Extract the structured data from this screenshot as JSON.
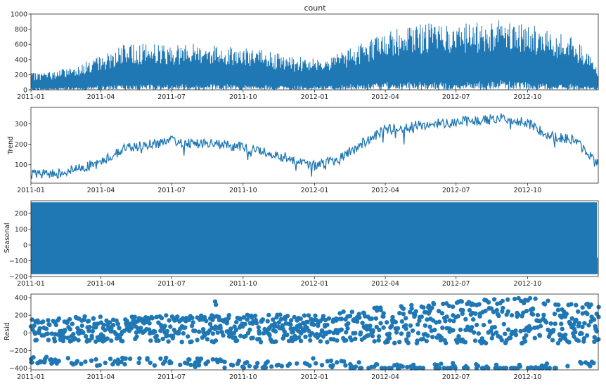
{
  "colors": {
    "series": "#1f77b4",
    "axis": "#262626"
  },
  "chart_data": [
    {
      "type": "line",
      "title": "count",
      "ylabel": "",
      "x_range": [
        "2011-01-01",
        "2012-12-31"
      ],
      "ylim": [
        0,
        1000
      ],
      "yticks": [
        0,
        200,
        400,
        600,
        800,
        1000
      ],
      "xticks": [
        "2011-01",
        "2011-04",
        "2011-07",
        "2011-10",
        "2012-01",
        "2012-04",
        "2012-07",
        "2012-10"
      ],
      "grid": false,
      "envelope": {
        "x": [
          "2011-01-01",
          "2011-02-01",
          "2011-03-01",
          "2011-04-01",
          "2011-05-01",
          "2011-06-01",
          "2011-07-01",
          "2011-08-01",
          "2011-09-01",
          "2011-10-01",
          "2011-11-01",
          "2011-12-01",
          "2012-01-01",
          "2012-02-01",
          "2012-03-01",
          "2012-04-01",
          "2012-05-01",
          "2012-06-01",
          "2012-07-01",
          "2012-08-01",
          "2012-09-01",
          "2012-10-01",
          "2012-11-01",
          "2012-12-01",
          "2012-12-31"
        ],
        "max": [
          220,
          250,
          330,
          450,
          600,
          620,
          600,
          620,
          600,
          560,
          520,
          430,
          450,
          480,
          620,
          780,
          850,
          880,
          870,
          890,
          960,
          880,
          760,
          700,
          300
        ],
        "min": [
          0,
          0,
          0,
          0,
          0,
          0,
          0,
          0,
          0,
          0,
          0,
          0,
          0,
          0,
          0,
          0,
          0,
          0,
          0,
          0,
          0,
          0,
          0,
          0,
          0
        ]
      }
    },
    {
      "type": "line",
      "title": "",
      "ylabel": "Trend",
      "x_range": [
        "2011-01-01",
        "2012-12-31"
      ],
      "ylim": [
        10,
        380
      ],
      "yticks": [
        100,
        200,
        300
      ],
      "xticks": [
        "2011-01",
        "2011-04",
        "2011-07",
        "2011-10",
        "2012-01",
        "2012-04",
        "2012-07",
        "2012-10"
      ],
      "grid": false,
      "x": [
        "2011-01-01",
        "2011-02-01",
        "2011-03-01",
        "2011-04-01",
        "2011-05-01",
        "2011-06-01",
        "2011-07-01",
        "2011-08-01",
        "2011-09-01",
        "2011-10-01",
        "2011-11-01",
        "2011-12-01",
        "2012-01-01",
        "2012-02-01",
        "2012-03-01",
        "2012-04-01",
        "2012-05-01",
        "2012-06-01",
        "2012-07-01",
        "2012-08-01",
        "2012-09-01",
        "2012-10-01",
        "2012-11-01",
        "2012-12-01",
        "2012-12-31"
      ],
      "values": [
        50,
        55,
        80,
        110,
        180,
        200,
        215,
        205,
        200,
        185,
        160,
        130,
        95,
        125,
        200,
        270,
        285,
        300,
        310,
        315,
        330,
        300,
        240,
        220,
        100
      ]
    },
    {
      "type": "area",
      "title": "",
      "ylabel": "Seasonal",
      "x_range": [
        "2011-01-01",
        "2012-12-31"
      ],
      "ylim": [
        -200,
        280
      ],
      "yticks": [
        -200,
        -100,
        0,
        100,
        200
      ],
      "xticks": [
        "2011-01",
        "2011-04",
        "2011-07",
        "2011-10",
        "2012-01",
        "2012-04",
        "2012-07",
        "2012-10"
      ],
      "grid": false,
      "band": {
        "max": 270,
        "min": -185
      }
    },
    {
      "type": "scatter",
      "title": "",
      "ylabel": "Resid",
      "x_range": [
        "2011-01-01",
        "2012-12-31"
      ],
      "ylim": [
        -420,
        440
      ],
      "yticks": [
        -400,
        -200,
        0,
        200,
        400
      ],
      "xticks": [
        "2011-01",
        "2011-04",
        "2011-07",
        "2011-10",
        "2012-01",
        "2012-04",
        "2012-07",
        "2012-10"
      ],
      "grid": false,
      "band": {
        "x": [
          "2011-01-01",
          "2011-04-01",
          "2011-07-01",
          "2011-10-01",
          "2012-01-01",
          "2012-04-01",
          "2012-07-01",
          "2012-10-01",
          "2012-12-31"
        ],
        "max": [
          170,
          190,
          200,
          210,
          200,
          300,
          360,
          400,
          320
        ],
        "min": [
          -280,
          -290,
          -300,
          -310,
          -300,
          -350,
          -360,
          -370,
          -330
        ]
      }
    }
  ]
}
